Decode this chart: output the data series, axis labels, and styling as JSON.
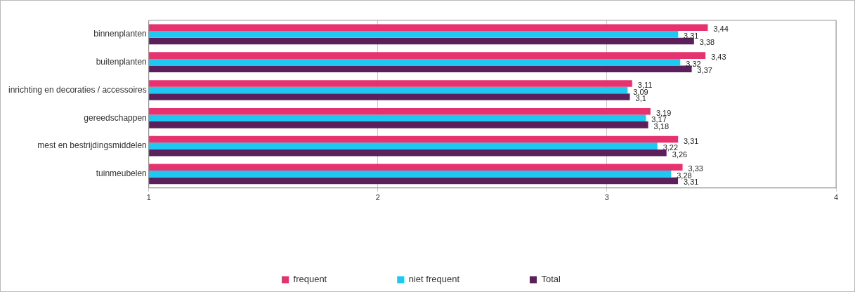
{
  "chart_data": {
    "type": "bar",
    "orientation": "horizontal",
    "categories": [
      "binnenplanten",
      "buitenplanten",
      "inrichting en decoraties / accessoires",
      "gereedschappen",
      "mest en bestrijdingsmiddelen",
      "tuinmeubelen"
    ],
    "series": [
      {
        "name": "frequent",
        "color": "#e6336f",
        "values": [
          3.44,
          3.43,
          3.11,
          3.19,
          3.31,
          3.33
        ],
        "value_labels": [
          "3,44",
          "3,43",
          "3,11",
          "3,19",
          "3,31",
          "3,33"
        ]
      },
      {
        "name": "niet frequent",
        "color": "#1ec8f0",
        "values": [
          3.31,
          3.32,
          3.09,
          3.17,
          3.22,
          3.28
        ],
        "value_labels": [
          "3,31",
          "3,32",
          "3,09",
          "3,17",
          "3,22",
          "3,28"
        ]
      },
      {
        "name": "Total",
        "color": "#5b1f5c",
        "values": [
          3.38,
          3.37,
          3.1,
          3.18,
          3.26,
          3.31
        ],
        "value_labels": [
          "3,38",
          "3,37",
          "3,1",
          "3,18",
          "3,26",
          "3,31"
        ]
      }
    ],
    "xlim": [
      1,
      4
    ],
    "xticks": [
      1,
      2,
      3,
      4
    ],
    "grid": "x",
    "legend": "bottom"
  }
}
